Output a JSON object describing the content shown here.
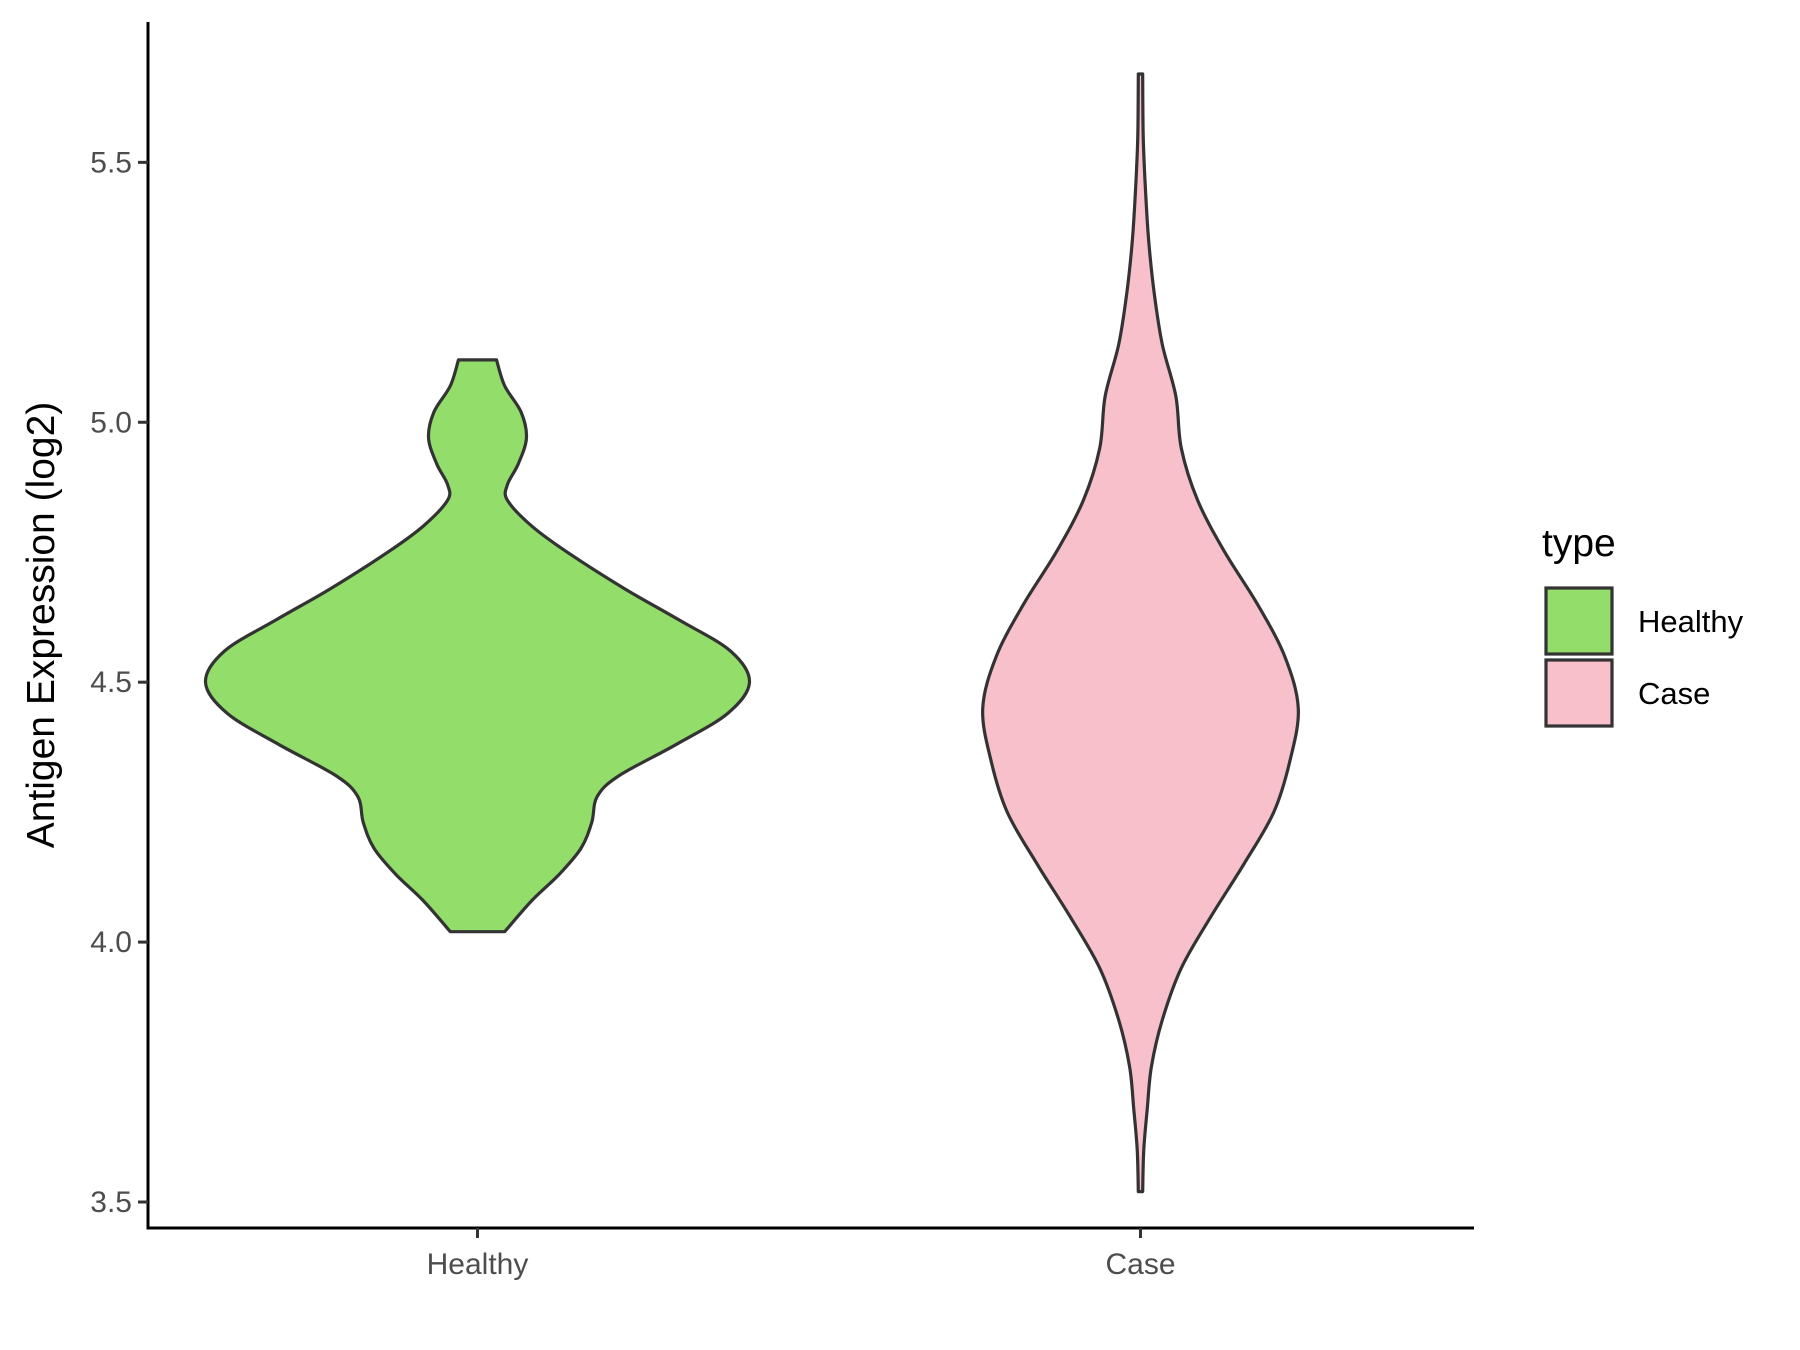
{
  "chart_data": {
    "type": "violin",
    "ylabel": "Antigen Expression (log2)",
    "xlabel": "",
    "categories": [
      "Healthy",
      "Case"
    ],
    "ylim": [
      3.45,
      5.77
    ],
    "yticks": [
      3.5,
      4.0,
      4.5,
      5.0,
      5.5
    ],
    "ytick_labels": [
      "3.5",
      "4.0",
      "4.5",
      "5.0",
      "5.5"
    ],
    "legend": {
      "title": "type",
      "placement": "right",
      "entries": [
        "Healthy",
        "Case"
      ]
    },
    "grid": false,
    "series": [
      {
        "name": "Healthy",
        "color": "#93DD6A",
        "min": 4.02,
        "max": 5.12,
        "density_profile": [
          [
            4.02,
            0.1
          ],
          [
            4.08,
            0.2
          ],
          [
            4.13,
            0.3
          ],
          [
            4.18,
            0.38
          ],
          [
            4.23,
            0.42
          ],
          [
            4.28,
            0.44
          ],
          [
            4.32,
            0.52
          ],
          [
            4.38,
            0.73
          ],
          [
            4.44,
            0.92
          ],
          [
            4.5,
            1.0
          ],
          [
            4.56,
            0.93
          ],
          [
            4.62,
            0.74
          ],
          [
            4.68,
            0.54
          ],
          [
            4.75,
            0.33
          ],
          [
            4.8,
            0.2
          ],
          [
            4.85,
            0.11
          ],
          [
            4.88,
            0.11
          ],
          [
            4.92,
            0.15
          ],
          [
            4.97,
            0.18
          ],
          [
            5.02,
            0.16
          ],
          [
            5.07,
            0.1
          ],
          [
            5.12,
            0.07
          ]
        ]
      },
      {
        "name": "Case",
        "color": "#F8C0CB",
        "min": 3.52,
        "max": 5.67,
        "density_profile": [
          [
            3.52,
            0.008
          ],
          [
            3.6,
            0.012
          ],
          [
            3.68,
            0.025
          ],
          [
            3.76,
            0.04
          ],
          [
            3.85,
            0.08
          ],
          [
            3.95,
            0.15
          ],
          [
            4.05,
            0.26
          ],
          [
            4.15,
            0.38
          ],
          [
            4.25,
            0.49
          ],
          [
            4.35,
            0.55
          ],
          [
            4.45,
            0.58
          ],
          [
            4.55,
            0.53
          ],
          [
            4.65,
            0.43
          ],
          [
            4.75,
            0.31
          ],
          [
            4.85,
            0.21
          ],
          [
            4.95,
            0.15
          ],
          [
            5.05,
            0.13
          ],
          [
            5.15,
            0.08
          ],
          [
            5.25,
            0.05
          ],
          [
            5.35,
            0.03
          ],
          [
            5.45,
            0.018
          ],
          [
            5.55,
            0.01
          ],
          [
            5.67,
            0.008
          ]
        ]
      }
    ]
  }
}
